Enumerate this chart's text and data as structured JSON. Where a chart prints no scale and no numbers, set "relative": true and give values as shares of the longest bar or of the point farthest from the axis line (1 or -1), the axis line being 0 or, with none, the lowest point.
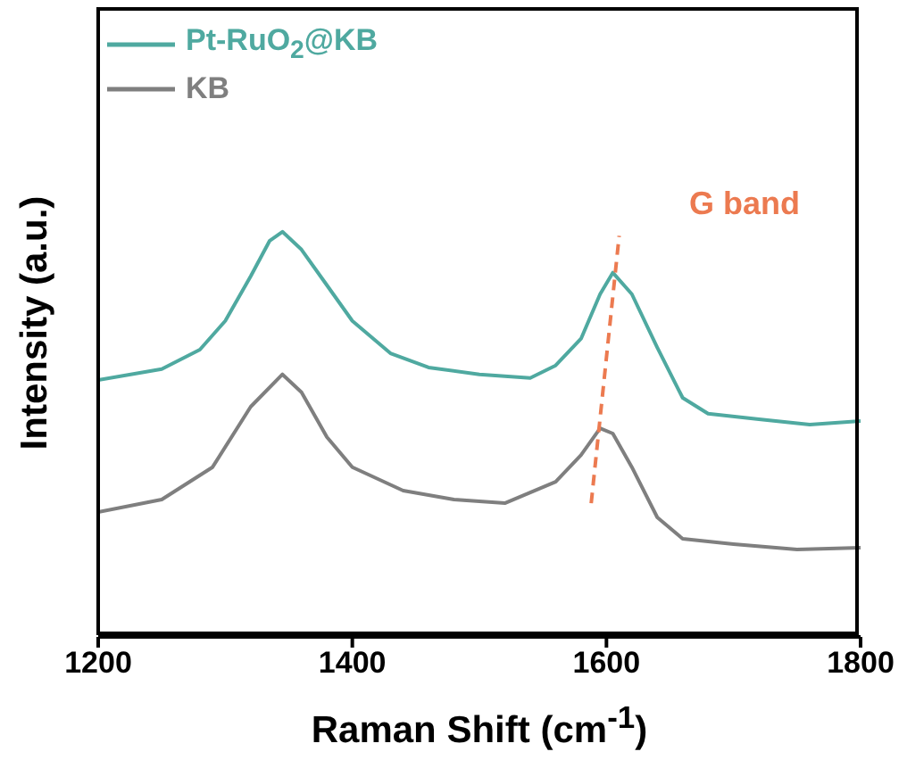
{
  "chart_data": {
    "type": "line",
    "xlabel": "Raman Shift (cm$^{-1}$)",
    "ylabel": "Intensity (a.u.)",
    "relative": true,
    "xlim": [
      1200,
      1800
    ],
    "xticks": [
      1200,
      1400,
      1600,
      1800
    ],
    "legend": "top left",
    "marker": "none",
    "annotations": [
      "G band"
    ],
    "series": [
      {
        "name": "Pt-RuO$_{2}$@KB",
        "color": "#4fa9a0",
        "x": [
          1200,
          1250,
          1280,
          1300,
          1320,
          1335,
          1345,
          1360,
          1380,
          1400,
          1430,
          1460,
          1500,
          1540,
          1560,
          1580,
          1595,
          1605,
          1620,
          1640,
          1660,
          1680,
          1720,
          1760,
          1800
        ],
        "values": [
          0.634,
          0.661,
          0.709,
          0.78,
          0.89,
          0.978,
          1,
          0.956,
          0.868,
          0.78,
          0.7,
          0.665,
          0.648,
          0.639,
          0.67,
          0.736,
          0.846,
          0.899,
          0.846,
          0.714,
          0.59,
          0.551,
          0.537,
          0.524,
          0.533
        ]
      },
      {
        "name": "KB",
        "color": "#7f7f7f",
        "x": [
          1200,
          1250,
          1290,
          1320,
          1345,
          1360,
          1380,
          1400,
          1440,
          1480,
          1520,
          1560,
          1580,
          1595,
          1605,
          1620,
          1640,
          1660,
          1700,
          1750,
          1800
        ],
        "values": [
          0.308,
          0.339,
          0.419,
          0.568,
          0.648,
          0.604,
          0.493,
          0.419,
          0.361,
          0.339,
          0.33,
          0.383,
          0.449,
          0.515,
          0.502,
          0.419,
          0.295,
          0.242,
          0.229,
          0.216,
          0.22
        ]
      },
      {
        "color": "#ec7a50",
        "line_style": "dashed",
        "x": [
          1588,
          1610
        ],
        "values": [
          0.33,
          0.99
        ]
      }
    ]
  }
}
